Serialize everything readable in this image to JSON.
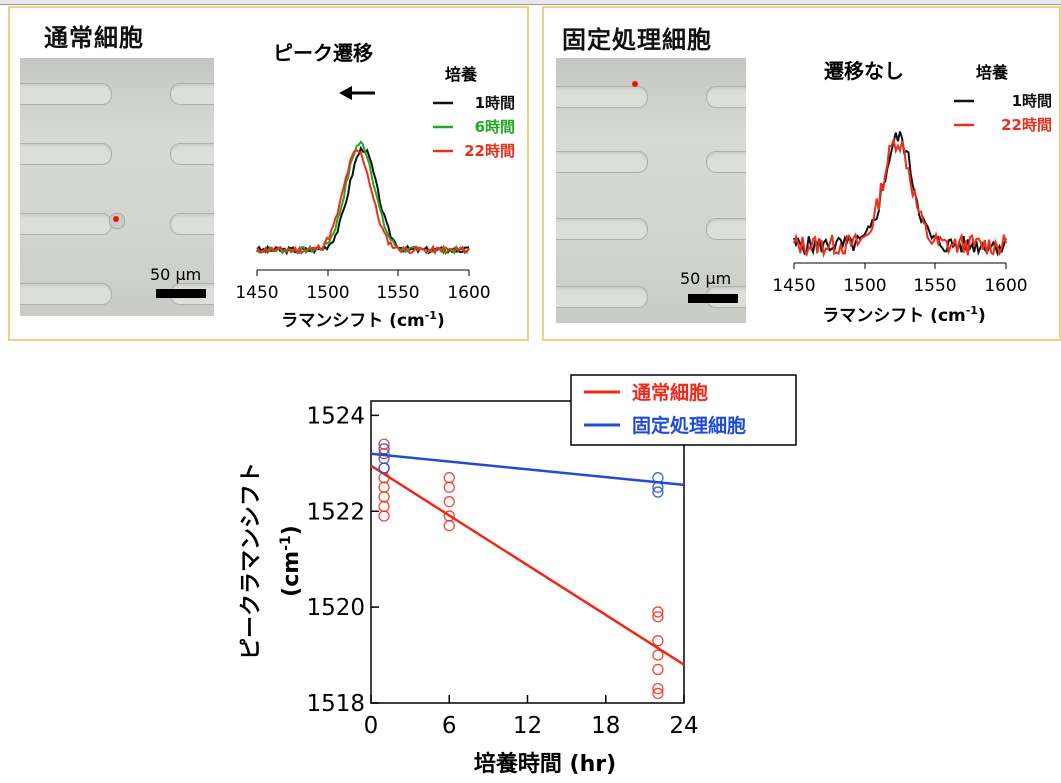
{
  "panel_left": {
    "title": "通常細胞",
    "scale_label": "50 μm",
    "chart_title": "ピーク遷移",
    "legend_title": "培養",
    "legend": [
      {
        "label": "1時間",
        "color": "#111111"
      },
      {
        "label": "6時間",
        "color": "#22a822"
      },
      {
        "label": "22時間",
        "color": "#e8301c"
      }
    ],
    "xticks": [
      "1450",
      "1500",
      "1550",
      "1600"
    ],
    "xlabel_main": "ラマンシフト (cm",
    "xlabel_sup": "-1",
    "xlabel_end": ")"
  },
  "panel_right": {
    "title": "固定処理細胞",
    "scale_label": "50 μm",
    "chart_title": "遷移なし",
    "legend_title": "培養",
    "legend": [
      {
        "label": "1時間",
        "color": "#111111"
      },
      {
        "label": "22時間",
        "color": "#e8301c"
      }
    ],
    "xticks": [
      "1450",
      "1500",
      "1550",
      "1600"
    ],
    "xlabel_main": "ラマンシフト (cm",
    "xlabel_sup": "-1",
    "xlabel_end": ")"
  },
  "bottom": {
    "ylabel_line1": "ピークラマンシフト",
    "ylabel_line2_main": "(cm",
    "ylabel_line2_sup": "-1",
    "ylabel_line2_end": ")",
    "xlabel": "培養時間 (hr)",
    "yticks": [
      "1518",
      "1520",
      "1522",
      "1524"
    ],
    "xticks": [
      "0",
      "6",
      "12",
      "18",
      "24"
    ]
  },
  "chart_data": [
    {
      "type": "line",
      "x_range": [
        1450,
        1600
      ],
      "series": [
        {
          "name": "1時間",
          "color": "#111111",
          "center": 1525,
          "width": 10,
          "height": 0.78,
          "noise": 0.025,
          "seed": 3
        },
        {
          "name": "6時間",
          "color": "#22a822",
          "center": 1523,
          "width": 10,
          "height": 0.82,
          "noise": 0.025,
          "seed": 7
        },
        {
          "name": "22時間",
          "color": "#e8301c",
          "center": 1521,
          "width": 10,
          "height": 0.76,
          "noise": 0.025,
          "seed": 11
        }
      ]
    },
    {
      "type": "line",
      "x_range": [
        1450,
        1600
      ],
      "series": [
        {
          "name": "1時間",
          "color": "#111111",
          "center": 1524,
          "width": 10,
          "height": 0.72,
          "noise": 0.06,
          "seed": 5
        },
        {
          "name": "22時間",
          "color": "#e8301c",
          "center": 1523,
          "width": 10,
          "height": 0.7,
          "noise": 0.07,
          "seed": 13
        }
      ]
    },
    {
      "type": "scatter",
      "xlabel": "培養時間 (hr)",
      "ylabel": "ピークラマンシフト (cm-1)",
      "xlim": [
        0,
        24
      ],
      "ylim": [
        1518,
        1524.3
      ],
      "legend_position": "top-right",
      "series": [
        {
          "name": "通常細胞",
          "color": "#f02818",
          "points": [
            [
              1,
              1523.4
            ],
            [
              1,
              1523.2
            ],
            [
              1,
              1522.9
            ],
            [
              1,
              1522.7
            ],
            [
              1,
              1522.5
            ],
            [
              1,
              1522.3
            ],
            [
              1,
              1522.1
            ],
            [
              1,
              1521.9
            ],
            [
              6,
              1522.7
            ],
            [
              6,
              1522.5
            ],
            [
              6,
              1522.2
            ],
            [
              6,
              1521.9
            ],
            [
              6,
              1521.7
            ],
            [
              22,
              1519.9
            ],
            [
              22,
              1519.8
            ],
            [
              22,
              1519.3
            ],
            [
              22,
              1519.0
            ],
            [
              22,
              1518.7
            ],
            [
              22,
              1518.3
            ],
            [
              22,
              1518.2
            ]
          ],
          "fit": [
            [
              0,
              1522.95
            ],
            [
              24,
              1518.8
            ]
          ]
        },
        {
          "name": "固定処理細胞",
          "color": "#1f4bd6",
          "points": [
            [
              1,
              1523.3
            ],
            [
              1,
              1523.1
            ],
            [
              1,
              1522.9
            ],
            [
              22,
              1522.7
            ],
            [
              22,
              1522.5
            ],
            [
              22,
              1522.4
            ]
          ],
          "fit": [
            [
              0,
              1523.2
            ],
            [
              24,
              1522.55
            ]
          ]
        }
      ]
    }
  ]
}
